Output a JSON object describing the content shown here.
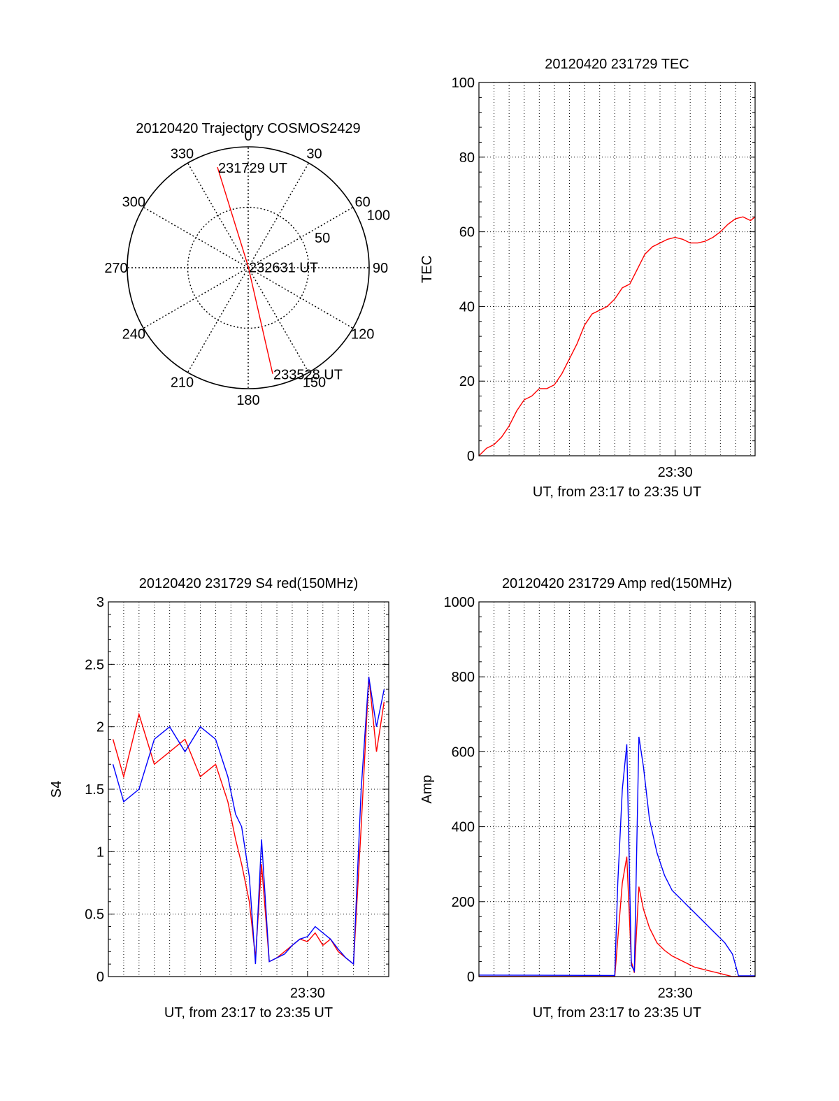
{
  "chart_data": [
    {
      "type": "polar",
      "title": "20120420 Trajectory COSMOS2429",
      "angle_labels": [
        "0",
        "30",
        "60",
        "90",
        "120",
        "150",
        "180",
        "210",
        "240",
        "270",
        "300",
        "330"
      ],
      "radial_labels": [
        "50",
        "100"
      ],
      "radial_range": [
        0,
        100
      ],
      "grid": true,
      "color": "#ff0000",
      "trajectory": [
        {
          "az": 343,
          "r": 87,
          "label": "231729 UT"
        },
        {
          "az": 0,
          "r": 1,
          "label": "232631 UT"
        },
        {
          "az": 167,
          "r": 90,
          "label": "233528 UT"
        }
      ]
    },
    {
      "type": "line",
      "title": "20120420 231729 TEC",
      "xlabel": "UT, from 23:17 to 23:35 UT",
      "ylabel": "TEC",
      "xlim": [
        0,
        18.3
      ],
      "ylim": [
        0,
        100
      ],
      "xticks": [
        {
          "x": 13,
          "label": "23:30"
        }
      ],
      "yticks": [
        "0",
        "20",
        "40",
        "60",
        "80",
        "100"
      ],
      "grid": true,
      "series": [
        {
          "color": "#ff0000",
          "x": [
            0,
            0.5,
            1,
            1.5,
            2,
            2.5,
            3,
            3.5,
            4,
            4.5,
            5,
            5.5,
            6,
            6.5,
            7,
            7.5,
            8,
            8.5,
            9,
            9.5,
            10,
            10.5,
            11,
            11.5,
            12,
            12.5,
            13,
            13.5,
            14,
            14.5,
            15,
            15.5,
            16,
            16.5,
            17,
            17.5,
            18,
            18.3
          ],
          "y": [
            0,
            2,
            3,
            5,
            8,
            12,
            15,
            16,
            18,
            18,
            19,
            22,
            26,
            30,
            35,
            38,
            39,
            40,
            42,
            45,
            46,
            50,
            54,
            56,
            57,
            58,
            58.5,
            58,
            57,
            57,
            57.5,
            58.5,
            60,
            62,
            63.5,
            64,
            63,
            64
          ]
        }
      ]
    },
    {
      "type": "line",
      "title": "20120420 231729 S4 red(150MHz)",
      "xlabel": "UT, from 23:17 to 23:35 UT",
      "ylabel": "S4",
      "xlim": [
        0,
        18.3
      ],
      "ylim": [
        0,
        3
      ],
      "xticks": [
        {
          "x": 13,
          "label": "23:30"
        }
      ],
      "yticks": [
        "0",
        "0.5",
        "1",
        "1.5",
        "2",
        "2.5",
        "3"
      ],
      "grid": true,
      "series": [
        {
          "color": "#ff0000",
          "x": [
            0.3,
            1,
            2,
            3,
            4,
            5,
            6,
            7,
            7.8,
            8.3,
            8.7,
            9.2,
            9.6,
            10,
            10.5,
            11,
            11.5,
            12,
            12.5,
            13,
            13.5,
            14,
            14.5,
            15,
            15.5,
            16,
            16.5,
            17,
            17.5,
            18
          ],
          "y": [
            1.9,
            1.6,
            2.1,
            1.7,
            1.8,
            1.9,
            1.6,
            1.7,
            1.4,
            1.1,
            0.9,
            0.6,
            0.15,
            0.9,
            0.12,
            0.15,
            0.2,
            0.25,
            0.3,
            0.28,
            0.35,
            0.25,
            0.3,
            0.2,
            0.15,
            0.1,
            1.2,
            2.4,
            1.8,
            2.2
          ]
        },
        {
          "color": "#0000ff",
          "x": [
            0.3,
            1,
            2,
            3,
            4,
            5,
            6,
            7,
            7.8,
            8.3,
            8.7,
            9.2,
            9.6,
            10,
            10.5,
            11,
            11.5,
            12,
            12.5,
            13,
            13.5,
            14,
            14.5,
            15,
            15.5,
            16,
            16.5,
            17,
            17.5,
            18
          ],
          "y": [
            1.7,
            1.4,
            1.5,
            1.9,
            2.0,
            1.8,
            2.0,
            1.9,
            1.6,
            1.3,
            1.2,
            0.8,
            0.1,
            1.1,
            0.12,
            0.15,
            0.18,
            0.25,
            0.3,
            0.32,
            0.4,
            0.35,
            0.3,
            0.22,
            0.15,
            0.1,
            1.5,
            2.4,
            2.0,
            2.3
          ]
        }
      ]
    },
    {
      "type": "line",
      "title": "20120420 231729 Amp red(150MHz)",
      "xlabel": "UT, from 23:17 to 23:35 UT",
      "ylabel": "Amp",
      "xlim": [
        0,
        18.3
      ],
      "ylim": [
        0,
        1000
      ],
      "xticks": [
        {
          "x": 13,
          "label": "23:30"
        }
      ],
      "yticks": [
        "0",
        "200",
        "400",
        "600",
        "800",
        "1000"
      ],
      "grid": true,
      "series": [
        {
          "color": "#ff0000",
          "x": [
            0,
            9,
            9.2,
            9.5,
            9.8,
            10.1,
            10.3,
            10.6,
            10.9,
            11.3,
            11.8,
            12.3,
            12.8,
            13.3,
            13.8,
            14.3,
            14.8,
            15.3,
            15.8,
            16.3,
            16.8,
            17.2,
            18.3
          ],
          "y": [
            0,
            0,
            100,
            250,
            320,
            40,
            10,
            240,
            180,
            130,
            90,
            70,
            55,
            45,
            35,
            25,
            20,
            15,
            10,
            5,
            0,
            0,
            0
          ]
        },
        {
          "color": "#0000ff",
          "x": [
            0,
            9,
            9.2,
            9.5,
            9.8,
            10.1,
            10.3,
            10.6,
            10.9,
            11.3,
            11.8,
            12.3,
            12.8,
            13.3,
            13.8,
            14.3,
            14.8,
            15.3,
            15.8,
            16.3,
            16.8,
            17.2,
            18.3
          ],
          "y": [
            4,
            3,
            250,
            500,
            620,
            30,
            15,
            640,
            560,
            420,
            330,
            270,
            230,
            210,
            190,
            170,
            150,
            130,
            110,
            90,
            60,
            2,
            2
          ]
        }
      ]
    }
  ]
}
